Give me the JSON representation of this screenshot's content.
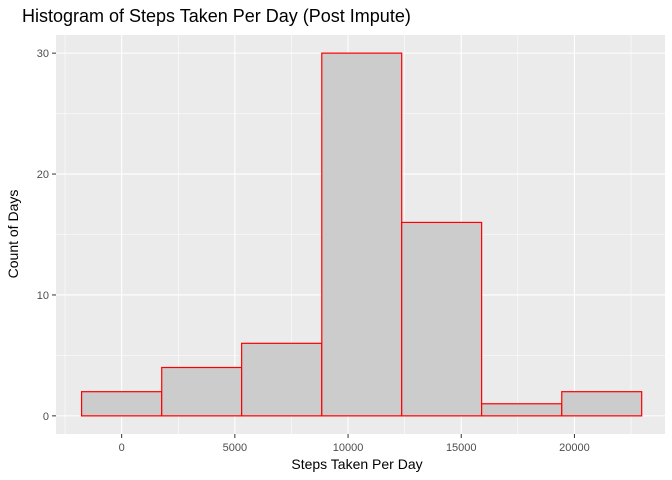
{
  "chart_data": {
    "type": "bar",
    "title": "Histogram of Steps Taken Per Day (Post Impute)",
    "xlabel": "Steps Taken Per Day",
    "ylabel": "Count of Days",
    "xlim": [
      -2900,
      24000
    ],
    "ylim": [
      -1.5,
      31.5
    ],
    "x_ticks": [
      0,
      5000,
      10000,
      15000,
      20000
    ],
    "x_tick_labels": [
      "0",
      "5000",
      "10000",
      "15000",
      "20000"
    ],
    "y_ticks": [
      0,
      10,
      20,
      30
    ],
    "y_tick_labels": [
      "0",
      "10",
      "20",
      "30"
    ],
    "bins": [
      {
        "x0": -1770,
        "x1": 1770,
        "count": 2
      },
      {
        "x0": 1770,
        "x1": 5300,
        "count": 4
      },
      {
        "x0": 5300,
        "x1": 8840,
        "count": 6
      },
      {
        "x0": 8840,
        "x1": 12370,
        "count": 30
      },
      {
        "x0": 12370,
        "x1": 15900,
        "count": 16
      },
      {
        "x0": 15900,
        "x1": 19440,
        "count": 1
      },
      {
        "x0": 19440,
        "x1": 22970,
        "count": 2
      }
    ],
    "grid": true,
    "colors": {
      "panel_background": "#ebebeb",
      "grid_major": "#ffffff",
      "bar_fill": "#cccccc",
      "bar_outline": "#ff0000",
      "tick_text": "#4d4d4d",
      "tick_mark": "#333333"
    }
  }
}
